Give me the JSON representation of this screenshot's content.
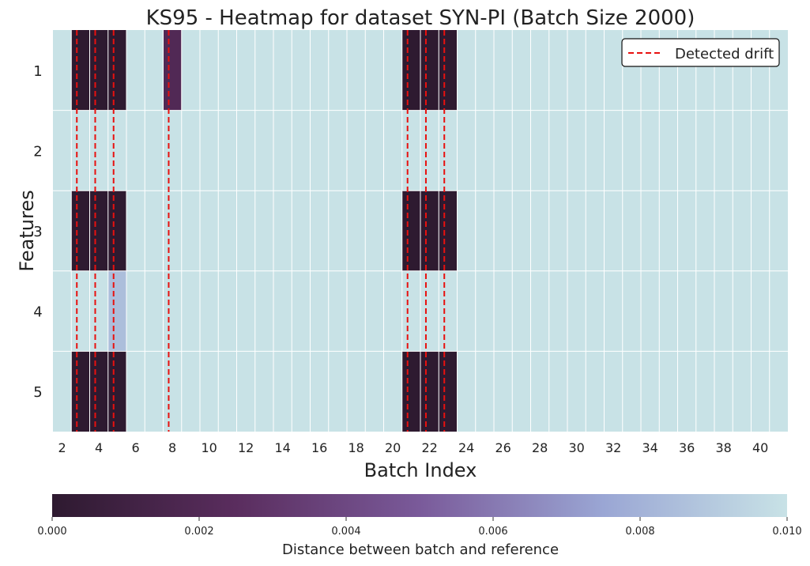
{
  "chart_data": {
    "type": "heatmap",
    "title": "KS95 - Heatmap for dataset SYN-PI (Batch Size 2000)",
    "xlabel": "Batch Index",
    "ylabel": "Features",
    "x_range": [
      2,
      40
    ],
    "x_tick_labels": [
      "2",
      "4",
      "6",
      "8",
      "10",
      "12",
      "14",
      "16",
      "18",
      "20",
      "22",
      "24",
      "26",
      "28",
      "30",
      "32",
      "34",
      "36",
      "38",
      "40"
    ],
    "y_tick_labels": [
      "1",
      "2",
      "3",
      "4",
      "5"
    ],
    "rows": [
      {
        "feature": "1",
        "low_values": [
          {
            "batch": 3,
            "value": 0.0
          },
          {
            "batch": 4,
            "value": 0.0
          },
          {
            "batch": 5,
            "value": 0.0
          },
          {
            "batch": 8,
            "value": 0.002
          },
          {
            "batch": 21,
            "value": 0.0
          },
          {
            "batch": 22,
            "value": 0.0
          },
          {
            "batch": 23,
            "value": 0.0
          }
        ]
      },
      {
        "feature": "2",
        "low_values": []
      },
      {
        "feature": "3",
        "low_values": [
          {
            "batch": 3,
            "value": 0.0
          },
          {
            "batch": 4,
            "value": 0.0
          },
          {
            "batch": 5,
            "value": 0.0
          },
          {
            "batch": 21,
            "value": 0.0
          },
          {
            "batch": 22,
            "value": 0.0
          },
          {
            "batch": 23,
            "value": 0.0
          }
        ]
      },
      {
        "feature": "4",
        "low_values": [
          {
            "batch": 5,
            "value": 0.0085
          }
        ]
      },
      {
        "feature": "5",
        "low_values": [
          {
            "batch": 3,
            "value": 0.0
          },
          {
            "batch": 4,
            "value": 0.0
          },
          {
            "batch": 5,
            "value": 0.0
          },
          {
            "batch": 21,
            "value": 0.0
          },
          {
            "batch": 22,
            "value": 0.0
          },
          {
            "batch": 23,
            "value": 0.0
          }
        ]
      }
    ],
    "default_value": 0.01,
    "drift_batches": [
      3,
      4,
      5,
      8,
      21,
      22,
      23
    ],
    "legend": {
      "label": "Detected drift",
      "placement": "top-right"
    },
    "colorbar": {
      "label": "Distance between batch and reference",
      "range": [
        0.0,
        0.01
      ],
      "tick_values": [
        0.0,
        0.002,
        0.004,
        0.006,
        0.008,
        0.01
      ],
      "tick_labels": [
        "0.000",
        "0.002",
        "0.004",
        "0.006",
        "0.008",
        "0.010"
      ],
      "colors": [
        "#2e1a30",
        "#5a2d5e",
        "#7a5a9a",
        "#9aa6d4",
        "#c8e2e6"
      ]
    },
    "colors": {
      "drift_line": "#e8110f",
      "grid": "#ffffff"
    }
  }
}
